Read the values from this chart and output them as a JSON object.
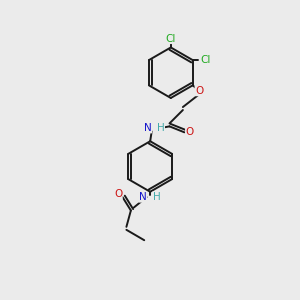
{
  "background_color": "#ebebeb",
  "bond_color": "#1a1a1a",
  "atom_colors": {
    "N": "#1414cc",
    "O": "#cc1414",
    "Cl": "#22aa22",
    "H": "#44aaaa"
  },
  "bond_width": 1.4,
  "figsize": [
    3.0,
    3.0
  ],
  "dpi": 100,
  "font_size": 7.5
}
